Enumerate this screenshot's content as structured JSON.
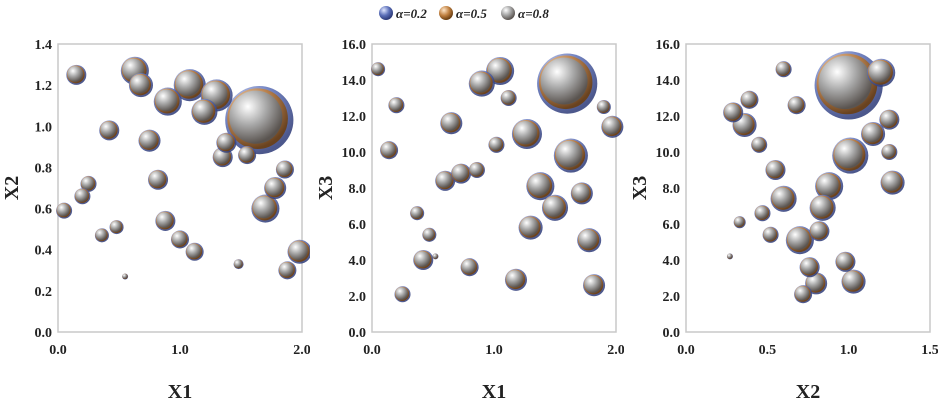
{
  "legend": {
    "items": [
      {
        "label": "α=0.2",
        "color": "#5b6fb8"
      },
      {
        "label": "α=0.5",
        "color": "#c08040"
      },
      {
        "label": "α=0.8",
        "color": "#a8a8a8"
      }
    ],
    "placement": "top-center"
  },
  "chart_data": [
    {
      "type": "scatter",
      "xlabel": "X1",
      "ylabel": "X2",
      "xlim": [
        0,
        2.0
      ],
      "ylim": [
        0,
        1.4
      ],
      "xticks": [
        "0.0",
        "1.0",
        "2.0"
      ],
      "yticks": [
        "0.0",
        "0.2",
        "0.4",
        "0.6",
        "0.8",
        "1.0",
        "1.2",
        "1.4"
      ],
      "grid": false,
      "points": [
        {
          "x": 0.15,
          "y": 1.25,
          "s": 1.0
        },
        {
          "x": 0.42,
          "y": 0.98,
          "s": 1.0
        },
        {
          "x": 0.25,
          "y": 0.72,
          "s": 0.8
        },
        {
          "x": 0.2,
          "y": 0.66,
          "s": 0.8
        },
        {
          "x": 0.05,
          "y": 0.59,
          "s": 0.8
        },
        {
          "x": 0.36,
          "y": 0.47,
          "s": 0.7
        },
        {
          "x": 0.48,
          "y": 0.51,
          "s": 0.7
        },
        {
          "x": 0.55,
          "y": 0.27,
          "s": 0.3
        },
        {
          "x": 0.63,
          "y": 1.27,
          "s": 1.4
        },
        {
          "x": 0.68,
          "y": 1.2,
          "s": 1.2
        },
        {
          "x": 0.75,
          "y": 0.93,
          "s": 1.1
        },
        {
          "x": 0.82,
          "y": 0.74,
          "s": 1.0
        },
        {
          "x": 0.9,
          "y": 1.12,
          "s": 1.4
        },
        {
          "x": 0.88,
          "y": 0.54,
          "s": 1.0
        },
        {
          "x": 1.0,
          "y": 0.45,
          "s": 0.9
        },
        {
          "x": 1.12,
          "y": 0.39,
          "s": 0.9
        },
        {
          "x": 1.08,
          "y": 1.2,
          "s": 1.6
        },
        {
          "x": 1.2,
          "y": 1.07,
          "s": 1.3
        },
        {
          "x": 1.3,
          "y": 1.15,
          "s": 1.6
        },
        {
          "x": 1.35,
          "y": 0.85,
          "s": 1.0
        },
        {
          "x": 1.38,
          "y": 0.92,
          "s": 1.0
        },
        {
          "x": 1.48,
          "y": 0.33,
          "s": 0.5
        },
        {
          "x": 1.55,
          "y": 0.86,
          "s": 0.9
        },
        {
          "x": 1.65,
          "y": 1.03,
          "s": 3.4
        },
        {
          "x": 1.7,
          "y": 0.6,
          "s": 1.4
        },
        {
          "x": 1.78,
          "y": 0.7,
          "s": 1.1
        },
        {
          "x": 1.86,
          "y": 0.79,
          "s": 0.9
        },
        {
          "x": 1.88,
          "y": 0.3,
          "s": 0.9
        },
        {
          "x": 1.98,
          "y": 0.39,
          "s": 1.2
        }
      ]
    },
    {
      "type": "scatter",
      "xlabel": "X1",
      "ylabel": "X3",
      "xlim": [
        0,
        2.0
      ],
      "ylim": [
        0,
        16.0
      ],
      "xticks": [
        "0.0",
        "1.0",
        "2.0"
      ],
      "yticks": [
        "0.0",
        "2.0",
        "4.0",
        "6.0",
        "8.0",
        "10.0",
        "12.0",
        "14.0",
        "16.0"
      ],
      "grid": false,
      "points": [
        {
          "x": 0.05,
          "y": 14.6,
          "s": 0.7
        },
        {
          "x": 0.2,
          "y": 12.6,
          "s": 0.8
        },
        {
          "x": 0.14,
          "y": 10.1,
          "s": 0.9
        },
        {
          "x": 0.37,
          "y": 6.6,
          "s": 0.7
        },
        {
          "x": 0.47,
          "y": 5.4,
          "s": 0.7
        },
        {
          "x": 0.52,
          "y": 4.2,
          "s": 0.3
        },
        {
          "x": 0.42,
          "y": 4.0,
          "s": 1.0
        },
        {
          "x": 0.25,
          "y": 2.1,
          "s": 0.8
        },
        {
          "x": 0.65,
          "y": 11.6,
          "s": 1.1
        },
        {
          "x": 0.6,
          "y": 8.4,
          "s": 1.0
        },
        {
          "x": 0.73,
          "y": 8.8,
          "s": 1.0
        },
        {
          "x": 0.86,
          "y": 9.0,
          "s": 0.8
        },
        {
          "x": 0.8,
          "y": 3.6,
          "s": 0.9
        },
        {
          "x": 0.9,
          "y": 13.8,
          "s": 1.3
        },
        {
          "x": 1.02,
          "y": 10.4,
          "s": 0.8
        },
        {
          "x": 1.05,
          "y": 14.5,
          "s": 1.4
        },
        {
          "x": 1.12,
          "y": 13.0,
          "s": 0.8
        },
        {
          "x": 1.18,
          "y": 2.9,
          "s": 1.1
        },
        {
          "x": 1.27,
          "y": 11.0,
          "s": 1.5
        },
        {
          "x": 1.3,
          "y": 5.8,
          "s": 1.2
        },
        {
          "x": 1.38,
          "y": 8.1,
          "s": 1.4
        },
        {
          "x": 1.5,
          "y": 6.9,
          "s": 1.3
        },
        {
          "x": 1.63,
          "y": 9.8,
          "s": 1.7
        },
        {
          "x": 1.6,
          "y": 13.8,
          "s": 3.0
        },
        {
          "x": 1.72,
          "y": 7.7,
          "s": 1.1
        },
        {
          "x": 1.78,
          "y": 5.1,
          "s": 1.2
        },
        {
          "x": 1.82,
          "y": 2.6,
          "s": 1.1
        },
        {
          "x": 1.9,
          "y": 12.5,
          "s": 0.7
        },
        {
          "x": 1.97,
          "y": 11.4,
          "s": 1.1
        }
      ]
    },
    {
      "type": "scatter",
      "xlabel": "X2",
      "ylabel": "X3",
      "xlim": [
        0,
        1.5
      ],
      "ylim": [
        0,
        16.0
      ],
      "xticks": [
        "0.0",
        "0.5",
        "1.0",
        "1.5"
      ],
      "yticks": [
        "0.0",
        "2.0",
        "4.0",
        "6.0",
        "8.0",
        "10.0",
        "12.0",
        "14.0",
        "16.0"
      ],
      "grid": false,
      "points": [
        {
          "x": 0.27,
          "y": 4.2,
          "s": 0.3
        },
        {
          "x": 0.33,
          "y": 6.1,
          "s": 0.6
        },
        {
          "x": 0.29,
          "y": 12.2,
          "s": 1.0
        },
        {
          "x": 0.36,
          "y": 11.5,
          "s": 1.2
        },
        {
          "x": 0.39,
          "y": 12.9,
          "s": 0.9
        },
        {
          "x": 0.45,
          "y": 10.4,
          "s": 0.8
        },
        {
          "x": 0.47,
          "y": 6.6,
          "s": 0.8
        },
        {
          "x": 0.52,
          "y": 5.4,
          "s": 0.8
        },
        {
          "x": 0.55,
          "y": 9.0,
          "s": 1.0
        },
        {
          "x": 0.6,
          "y": 14.6,
          "s": 0.8
        },
        {
          "x": 0.6,
          "y": 7.4,
          "s": 1.3
        },
        {
          "x": 0.68,
          "y": 12.6,
          "s": 0.9
        },
        {
          "x": 0.7,
          "y": 5.1,
          "s": 1.4
        },
        {
          "x": 0.72,
          "y": 2.1,
          "s": 0.9
        },
        {
          "x": 0.76,
          "y": 3.6,
          "s": 1.0
        },
        {
          "x": 0.8,
          "y": 2.7,
          "s": 1.1
        },
        {
          "x": 0.82,
          "y": 5.6,
          "s": 1.0
        },
        {
          "x": 0.84,
          "y": 6.9,
          "s": 1.3
        },
        {
          "x": 0.88,
          "y": 8.1,
          "s": 1.4
        },
        {
          "x": 0.98,
          "y": 3.9,
          "s": 1.0
        },
        {
          "x": 1.03,
          "y": 2.8,
          "s": 1.2
        },
        {
          "x": 1.01,
          "y": 9.8,
          "s": 1.8
        },
        {
          "x": 1.0,
          "y": 13.7,
          "s": 3.4
        },
        {
          "x": 1.15,
          "y": 11.0,
          "s": 1.2
        },
        {
          "x": 1.2,
          "y": 14.4,
          "s": 1.4
        },
        {
          "x": 1.25,
          "y": 11.8,
          "s": 1.0
        },
        {
          "x": 1.25,
          "y": 10.0,
          "s": 0.8
        },
        {
          "x": 1.27,
          "y": 8.3,
          "s": 1.2
        }
      ]
    }
  ]
}
